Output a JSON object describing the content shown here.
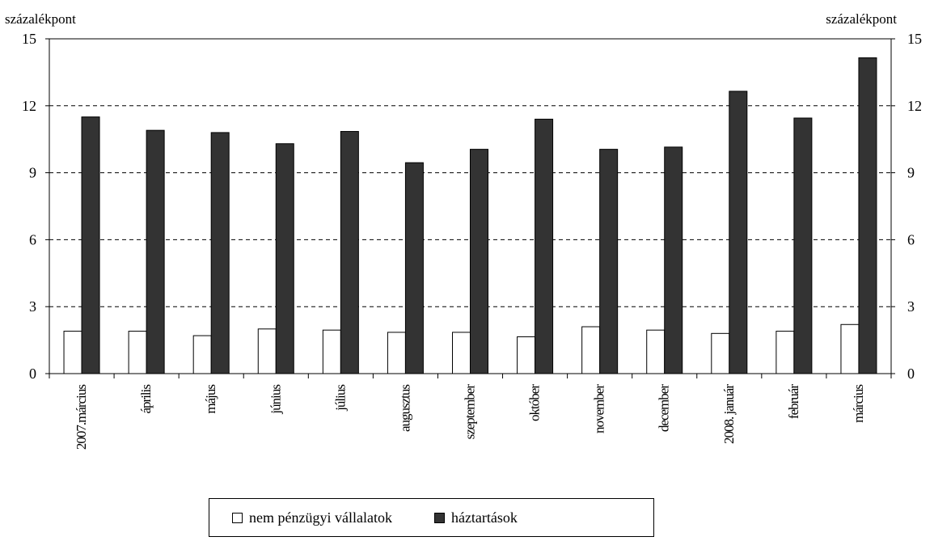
{
  "chart_data": {
    "type": "bar",
    "y_unit_left": "százalékpont",
    "y_unit_right": "százalékpont",
    "ylim": [
      0,
      15
    ],
    "yticks": [
      0,
      3,
      6,
      9,
      12,
      15
    ],
    "grid": "horizontal dashed",
    "legend_position": "bottom",
    "categories": [
      "2007.március",
      "április",
      "május",
      "június",
      "július",
      "augusztus",
      "szeptember",
      "október",
      "november",
      "december",
      "2008. január",
      "február",
      "március"
    ],
    "series": [
      {
        "name": "nem pénzügyi vállalatok",
        "color": "#ffffff",
        "values": [
          1.9,
          1.9,
          1.7,
          2.0,
          1.95,
          1.85,
          1.85,
          1.65,
          2.1,
          1.95,
          1.8,
          1.9,
          2.2
        ]
      },
      {
        "name": "háztartások",
        "color": "#333333",
        "values": [
          11.5,
          10.9,
          10.8,
          10.3,
          10.85,
          9.45,
          10.05,
          11.4,
          10.05,
          10.15,
          12.65,
          11.45,
          14.15
        ]
      }
    ]
  }
}
